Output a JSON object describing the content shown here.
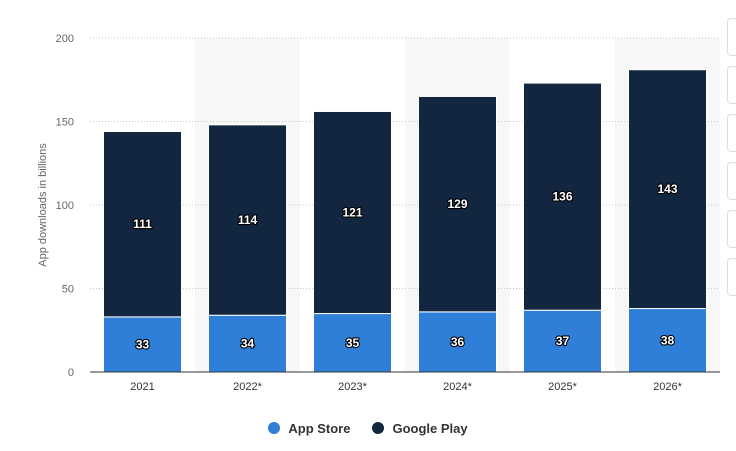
{
  "chart_data": {
    "type": "bar",
    "stacked": true,
    "categories": [
      "2021",
      "2022*",
      "2023*",
      "2024*",
      "2025*",
      "2026*"
    ],
    "series": [
      {
        "name": "App Store",
        "values": [
          33,
          34,
          35,
          36,
          37,
          38
        ],
        "color": "#2f7ed8"
      },
      {
        "name": "Google Play",
        "values": [
          111,
          114,
          121,
          129,
          136,
          143
        ],
        "color": "#12263f"
      }
    ],
    "title": "",
    "xlabel": "",
    "ylabel": "App downloads in billions",
    "ylim": [
      0,
      200
    ],
    "yticks": [
      0,
      50,
      100,
      150,
      200
    ],
    "grid": "horizontal-dotted",
    "legend_position": "bottom-center"
  }
}
